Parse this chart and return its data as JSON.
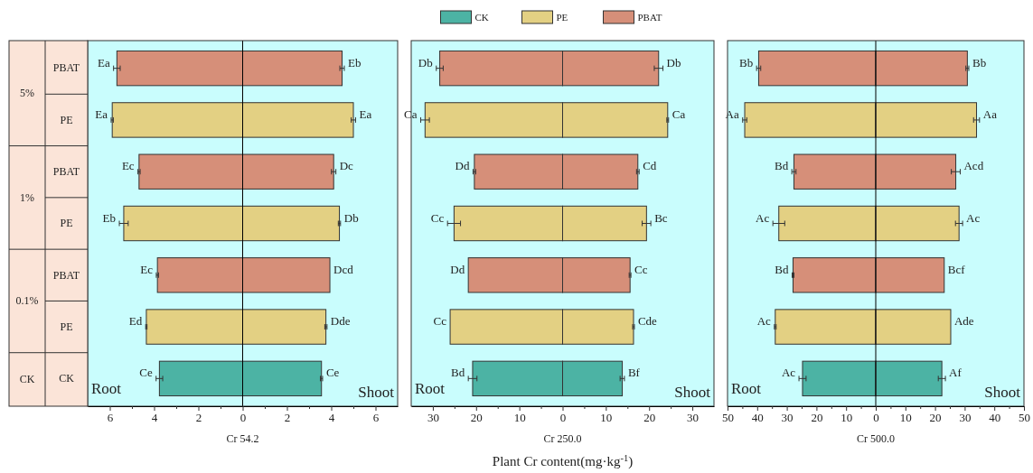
{
  "chart_data": [
    {
      "type": "bar",
      "orientation": "horizontal",
      "stacked": true,
      "categories": [
        "PBAT",
        "PE",
        "PBAT",
        "PE",
        "PBAT",
        "PE",
        "CK"
      ],
      "xlabel": "Cr 54.2",
      "xlim": [
        -7,
        7
      ],
      "xticks": [
        {
          "value": -6,
          "label": "6"
        },
        {
          "value": -5,
          "label": null
        },
        {
          "value": -4,
          "label": "4"
        },
        {
          "value": -3,
          "label": null
        },
        {
          "value": -2,
          "label": "2"
        },
        {
          "value": -1,
          "label": null
        },
        0,
        {
          "value": 1,
          "label": null
        },
        2,
        {
          "value": 3,
          "label": null
        },
        4,
        {
          "value": 5,
          "label": null
        },
        6
      ],
      "ref_lines": [
        {
          "axis": "x",
          "value": 0,
          "color": "#000000"
        }
      ],
      "annotations": [
        "Root",
        "Shoot",
        "5%",
        "1%",
        "0.1%",
        "CK"
      ],
      "series": [
        {
          "color": "#4cb3a4",
          "values": [
            null,
            null,
            null,
            null,
            null,
            null,
            -3.76
          ],
          "errors": [
            null,
            null,
            null,
            null,
            null,
            null,
            0.15
          ],
          "value_labels": [
            null,
            null,
            null,
            null,
            null,
            null,
            "Ce"
          ]
        },
        {
          "color": "#4cb3a4",
          "values": [
            null,
            null,
            null,
            null,
            null,
            null,
            3.56
          ],
          "errors": [
            null,
            null,
            null,
            null,
            null,
            null,
            0.05
          ],
          "value_labels": [
            null,
            null,
            null,
            null,
            null,
            null,
            "Ce"
          ]
        },
        {
          "color": "#e3d083",
          "values": [
            null,
            -5.89,
            null,
            -5.37,
            null,
            -4.35,
            null
          ],
          "errors": [
            null,
            0.05,
            null,
            0.2,
            null,
            0.03,
            null
          ],
          "value_labels": [
            null,
            "Ea",
            null,
            "Eb",
            null,
            "Ed",
            null
          ]
        },
        {
          "color": "#e3d083",
          "values": [
            null,
            5.0,
            null,
            4.37,
            null,
            3.76,
            null
          ],
          "errors": [
            null,
            0.1,
            null,
            0.05,
            null,
            0.05,
            null
          ],
          "value_labels": [
            null,
            "Ea",
            null,
            "Db",
            null,
            "Dde",
            null
          ]
        },
        {
          "color": "#d68f79",
          "values": [
            -5.68,
            null,
            -4.68,
            null,
            -3.85,
            null,
            null
          ],
          "errors": [
            0.15,
            null,
            0.05,
            null,
            0.05,
            null,
            null
          ],
          "value_labels": [
            "Ea",
            null,
            "Ec",
            null,
            "Ec",
            null,
            null
          ]
        },
        {
          "color": "#d68f79",
          "values": [
            4.49,
            null,
            4.11,
            null,
            3.94,
            null,
            null
          ],
          "errors": [
            0.1,
            null,
            0.1,
            null,
            null,
            null,
            null
          ],
          "value_labels": [
            "Eb",
            null,
            "Dc",
            null,
            "Dcd",
            null,
            null
          ]
        }
      ]
    },
    {
      "type": "bar",
      "orientation": "horizontal",
      "stacked": true,
      "categories": [
        null,
        null,
        null,
        null,
        null,
        null,
        null
      ],
      "tick_labels": "x",
      "xlabel": "Cr 250.0",
      "xlim": [
        -35,
        35
      ],
      "legend": "top",
      "xticks": [
        {
          "value": -30,
          "label": "30"
        },
        {
          "value": -25,
          "label": null
        },
        {
          "value": -20,
          "label": "20"
        },
        {
          "value": -15,
          "label": null
        },
        {
          "value": -10,
          "label": "10"
        },
        {
          "value": -5,
          "label": null
        },
        0,
        {
          "value": 5,
          "label": null
        },
        10,
        {
          "value": 15,
          "label": null
        },
        20,
        {
          "value": 25,
          "label": null
        },
        30
      ],
      "annotations": [
        "Root",
        "Shoot",
        "Plant Cr content(mg·kg$^{-1}$)"
      ],
      "series": [
        {
          "name": "CK",
          "color": "#4cb3a4",
          "values": [
            null,
            null,
            null,
            null,
            null,
            null,
            -20.8
          ],
          "errors": [
            null,
            null,
            null,
            null,
            null,
            null,
            1.0
          ],
          "value_labels": [
            null,
            null,
            null,
            null,
            null,
            null,
            "Bd"
          ]
        },
        {
          "color": "#4cb3a4",
          "values": [
            null,
            null,
            null,
            null,
            null,
            null,
            13.8
          ],
          "errors": [
            null,
            null,
            null,
            null,
            null,
            null,
            0.5
          ],
          "value_labels": [
            null,
            null,
            null,
            null,
            null,
            null,
            "Bf"
          ]
        },
        {
          "name": "PE",
          "color": "#e3d083",
          "values": [
            null,
            -31.8,
            null,
            -25.1,
            null,
            -26.0,
            null
          ],
          "errors": [
            null,
            1.0,
            null,
            1.5,
            null,
            null,
            null
          ],
          "value_labels": [
            null,
            "Ca",
            null,
            "Cc",
            null,
            "Cc",
            null
          ]
        },
        {
          "color": "#e3d083",
          "values": [
            null,
            24.3,
            null,
            19.4,
            null,
            16.4,
            null
          ],
          "errors": [
            null,
            0.2,
            null,
            1.0,
            null,
            0.2,
            null
          ],
          "value_labels": [
            null,
            "Ca",
            null,
            "Bc",
            null,
            "Cde",
            null
          ]
        },
        {
          "name": "PBAT",
          "color": "#d68f79",
          "values": [
            -28.4,
            null,
            -20.4,
            null,
            -21.8,
            null,
            null
          ],
          "errors": [
            0.8,
            null,
            0.3,
            null,
            null,
            null,
            null
          ],
          "value_labels": [
            "Db",
            null,
            "Dd",
            null,
            "Dd",
            null,
            null
          ]
        },
        {
          "color": "#d68f79",
          "values": [
            22.2,
            null,
            17.4,
            null,
            15.6,
            null,
            null
          ],
          "errors": [
            1.0,
            null,
            0.3,
            null,
            0.2,
            null,
            null
          ],
          "value_labels": [
            "Db",
            null,
            "Cd",
            null,
            "Cc",
            null,
            null
          ]
        }
      ]
    },
    {
      "type": "bar",
      "orientation": "horizontal",
      "stacked": true,
      "categories": [
        null,
        null,
        null,
        null,
        null,
        null,
        null
      ],
      "tick_labels": "x",
      "xlabel": "Cr 500.0",
      "xlim": [
        -50,
        50
      ],
      "xticks": [
        {
          "value": -50,
          "label": "50"
        },
        {
          "value": -45,
          "label": null
        },
        {
          "value": -40,
          "label": "40"
        },
        {
          "value": -35,
          "label": null
        },
        {
          "value": -30,
          "label": "30"
        },
        {
          "value": -25,
          "label": null
        },
        {
          "value": -20,
          "label": "20"
        },
        {
          "value": -15,
          "label": null
        },
        {
          "value": -10,
          "label": "10"
        },
        {
          "value": -5,
          "label": null
        },
        0,
        {
          "value": 5,
          "label": null
        },
        10,
        {
          "value": 15,
          "label": null
        },
        20,
        {
          "value": 25,
          "label": null
        },
        30,
        {
          "value": 35,
          "label": null
        },
        40,
        {
          "value": 45,
          "label": null
        },
        50
      ],
      "ref_lines": [
        {
          "axis": "x",
          "value": 0,
          "color": "#000000"
        }
      ],
      "annotations": [
        "Root",
        "Shoot"
      ],
      "series": [
        {
          "color": "#4cb3a4",
          "values": [
            null,
            null,
            null,
            null,
            null,
            null,
            -24.7
          ],
          "errors": [
            null,
            null,
            null,
            null,
            null,
            null,
            1.2
          ],
          "value_labels": [
            null,
            null,
            null,
            null,
            null,
            null,
            "Ac"
          ]
        },
        {
          "color": "#4cb3a4",
          "values": [
            null,
            null,
            null,
            null,
            null,
            null,
            22.3
          ],
          "errors": [
            null,
            null,
            null,
            null,
            null,
            null,
            1.2
          ],
          "value_labels": [
            null,
            null,
            null,
            null,
            null,
            null,
            "Af"
          ]
        },
        {
          "color": "#e3d083",
          "values": [
            null,
            -44.2,
            null,
            -32.7,
            null,
            -33.9,
            null
          ],
          "errors": [
            null,
            0.7,
            null,
            2.0,
            null,
            0.3,
            null
          ],
          "value_labels": [
            null,
            "Aa",
            null,
            "Ac",
            null,
            "Ac",
            null
          ]
        },
        {
          "color": "#e3d083",
          "values": [
            null,
            34.0,
            null,
            28.1,
            null,
            25.3,
            null
          ],
          "errors": [
            null,
            1.0,
            null,
            1.2,
            null,
            null,
            null
          ],
          "value_labels": [
            null,
            "Aa",
            null,
            "Ac",
            null,
            "Ade",
            null
          ]
        },
        {
          "color": "#d68f79",
          "values": [
            -39.5,
            null,
            -27.6,
            null,
            -27.9,
            null,
            null
          ],
          "errors": [
            0.7,
            null,
            0.7,
            null,
            0.3,
            null,
            null
          ],
          "value_labels": [
            "Bb",
            null,
            "Bd",
            null,
            "Bd",
            null,
            null
          ]
        },
        {
          "color": "#d68f79",
          "values": [
            30.9,
            null,
            27.0,
            null,
            23.1,
            null,
            null
          ],
          "errors": [
            0.5,
            null,
            1.5,
            null,
            null,
            null,
            null
          ],
          "value_labels": [
            "Bb",
            null,
            "Acd",
            null,
            "Bcf",
            null,
            null
          ]
        }
      ]
    }
  ]
}
